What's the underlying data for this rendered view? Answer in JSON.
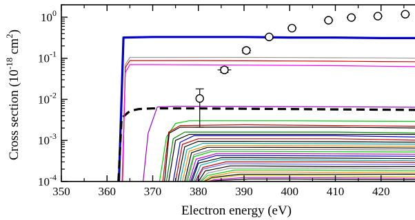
{
  "chart_data": {
    "type": "line",
    "title": "",
    "xlabel": "Electron energy (eV)",
    "ylabel_main": "Cross section (10",
    "ylabel_exp": "-18",
    "ylabel_unit": " cm",
    "ylabel_unit_exp": "2",
    "ylabel_close": ")",
    "xlim": [
      350,
      430
    ],
    "ylim": [
      0.0001,
      2
    ],
    "yscale": "log",
    "grid": false,
    "legend": "none",
    "x_ticks": [
      350,
      360,
      370,
      380,
      390,
      400,
      410,
      420
    ],
    "x_tick_labels": [
      "350",
      "360",
      "370",
      "380",
      "390",
      "400",
      "410",
      "420"
    ],
    "y_ticks": [
      0.0001,
      0.001,
      0.01,
      0.1,
      1
    ],
    "y_tick_base": [
      "10",
      "10",
      "10",
      "10",
      "10"
    ],
    "y_tick_exp": [
      "-4",
      "-3",
      "-2",
      "-1",
      "0"
    ],
    "experiment": {
      "x": [
        380.3,
        385.7,
        390.5,
        395.5,
        400.5,
        408.5,
        413.5,
        419.3,
        425.3
      ],
      "y": [
        0.0105,
        0.052,
        0.155,
        0.33,
        0.54,
        0.84,
        0.98,
        1.06,
        1.18
      ],
      "y_low": [
        0.0021,
        0.045,
        0.135,
        0.3,
        0.5,
        0.78,
        0.92,
        1.0,
        1.1
      ],
      "y_high": [
        0.018,
        0.06,
        0.175,
        0.36,
        0.58,
        0.9,
        1.04,
        1.14,
        1.28
      ],
      "x_err": [
        0,
        1.5,
        1.0,
        1.0,
        1.0,
        1.0,
        1.0,
        1.0,
        1.0
      ]
    },
    "series": [
      {
        "color": "#0000cc",
        "width": 3.2,
        "dash": "",
        "x": [
          362.6,
          363.6,
          370,
          380,
          390,
          400,
          410,
          420,
          430
        ],
        "y": [
          0.0001,
          0.32,
          0.33,
          0.33,
          0.33,
          0.32,
          0.32,
          0.31,
          0.31
        ]
      },
      {
        "color": "#000000",
        "width": 3.2,
        "dash": "12,7",
        "x": [
          362.5,
          363.2,
          365,
          367,
          370,
          380,
          390,
          400,
          410,
          420,
          430
        ],
        "y": [
          0.0001,
          0.0035,
          0.0052,
          0.0058,
          0.006,
          0.006,
          0.0059,
          0.0058,
          0.0057,
          0.0056,
          0.0055
        ]
      },
      {
        "color": "#999999",
        "width": 1.2,
        "dash": "",
        "x": [
          363.4,
          364,
          365,
          370,
          380,
          390,
          400,
          410,
          420,
          430
        ],
        "y": [
          0.0001,
          0.07,
          0.105,
          0.105,
          0.105,
          0.105,
          0.104,
          0.103,
          0.102,
          0.1
        ]
      },
      {
        "color": "#dd0000",
        "width": 1.2,
        "dash": "",
        "x": [
          363.4,
          364,
          365,
          370,
          380,
          390,
          400,
          410,
          420,
          430
        ],
        "y": [
          0.0001,
          0.06,
          0.088,
          0.088,
          0.088,
          0.087,
          0.086,
          0.085,
          0.083,
          0.082
        ]
      },
      {
        "color": "#ff00ff",
        "width": 1.2,
        "dash": "",
        "x": [
          363.3,
          364,
          365,
          370,
          380,
          390,
          400,
          410,
          420,
          430
        ],
        "y": [
          0.0001,
          0.045,
          0.07,
          0.07,
          0.069,
          0.068,
          0.067,
          0.066,
          0.064,
          0.062
        ]
      },
      {
        "color": "#9900cc",
        "width": 1.2,
        "dash": "",
        "x": [
          367.9,
          369,
          371,
          375,
          390,
          410,
          430
        ],
        "y": [
          0.0001,
          0.0015,
          0.0065,
          0.0068,
          0.0067,
          0.0066,
          0.0064
        ]
      },
      {
        "color": "#00cc00",
        "width": 1.2,
        "dash": "",
        "x": [
          371.5,
          373,
          375,
          378,
          400,
          430
        ],
        "y": [
          0.0001,
          0.0012,
          0.0026,
          0.003,
          0.003,
          0.0029
        ]
      },
      {
        "color": "#cc0000",
        "width": 1.2,
        "dash": "",
        "x": [
          372.2,
          373.5,
          376,
          390,
          410,
          430
        ],
        "y": [
          0.0001,
          0.0016,
          0.0023,
          0.0024,
          0.0023,
          0.0022
        ]
      },
      {
        "color": "#000000",
        "width": 1.2,
        "dash": "",
        "x": [
          372.6,
          373.6,
          376,
          390,
          410,
          430
        ],
        "y": [
          0.0001,
          0.0015,
          0.0021,
          0.0021,
          0.0021,
          0.002
        ]
      },
      {
        "color": "#008800",
        "width": 1.2,
        "dash": "",
        "x": [
          373,
          374.5,
          377,
          390,
          410,
          430
        ],
        "y": [
          0.0001,
          0.0011,
          0.0016,
          0.0016,
          0.0016,
          0.0015
        ]
      },
      {
        "color": "#000000",
        "width": 1.2,
        "dash": "",
        "x": [
          373.5,
          375,
          378,
          390,
          410,
          430
        ],
        "y": [
          0.0001,
          0.001,
          0.0014,
          0.0014,
          0.0014,
          0.0014
        ]
      },
      {
        "color": "#0000cc",
        "width": 1.2,
        "dash": "",
        "x": [
          374.5,
          376,
          379,
          390,
          410,
          430
        ],
        "y": [
          0.0001,
          0.0009,
          0.0013,
          0.0013,
          0.0013,
          0.0012
        ]
      },
      {
        "color": "#cc0000",
        "width": 1.2,
        "dash": "",
        "x": [
          375,
          376.5,
          380,
          390,
          410,
          430
        ],
        "y": [
          0.0001,
          0.0008,
          0.0011,
          0.0011,
          0.0011,
          0.001
        ]
      },
      {
        "color": "#000000",
        "width": 1.2,
        "dash": "",
        "x": [
          375.5,
          377,
          380,
          390,
          410,
          430
        ],
        "y": [
          0.0001,
          0.0007,
          0.00095,
          0.00095,
          0.00093,
          0.0009
        ]
      },
      {
        "color": "#00aaaa",
        "width": 1.2,
        "dash": "",
        "x": [
          376,
          377.5,
          381,
          390,
          410,
          430
        ],
        "y": [
          0.0001,
          0.0006,
          0.00085,
          0.00085,
          0.00083,
          0.0008
        ]
      },
      {
        "color": "#ff8800",
        "width": 1.2,
        "dash": "",
        "x": [
          376.5,
          378,
          382,
          390,
          410,
          430
        ],
        "y": [
          0.0001,
          0.00055,
          0.00075,
          0.00075,
          0.00074,
          0.00072
        ]
      },
      {
        "color": "#000000",
        "width": 1.2,
        "dash": "",
        "x": [
          377,
          378.5,
          382,
          390,
          410,
          430
        ],
        "y": [
          0.0001,
          0.0005,
          0.00068,
          0.00068,
          0.00067,
          0.00065
        ]
      },
      {
        "color": "#888888",
        "width": 1.2,
        "dash": "",
        "x": [
          377.3,
          379,
          383,
          390,
          410,
          430
        ],
        "y": [
          0.0001,
          0.00045,
          0.0006,
          0.0006,
          0.0006,
          0.00058
        ]
      },
      {
        "color": "#00cc00",
        "width": 1.2,
        "dash": "",
        "x": [
          377.6,
          379,
          383,
          390,
          410,
          430
        ],
        "y": [
          0.0001,
          0.0004,
          0.00054,
          0.00054,
          0.00053,
          0.00052
        ]
      },
      {
        "color": "#cc00cc",
        "width": 1.2,
        "dash": "",
        "x": [
          378,
          379.5,
          384,
          390,
          410,
          430
        ],
        "y": [
          0.0001,
          0.00035,
          0.00048,
          0.00048,
          0.00047,
          0.00046
        ]
      },
      {
        "color": "#0000cc",
        "width": 1.2,
        "dash": "",
        "x": [
          378.3,
          380,
          384,
          390,
          410,
          430
        ],
        "y": [
          0.0001,
          0.00032,
          0.00043,
          0.00043,
          0.00042,
          0.00041
        ]
      },
      {
        "color": "#000000",
        "width": 1.2,
        "dash": "",
        "x": [
          378.6,
          380,
          385,
          390,
          410,
          430
        ],
        "y": [
          0.0001,
          0.00028,
          0.00038,
          0.00038,
          0.00037,
          0.00036
        ]
      },
      {
        "color": "#00aaaa",
        "width": 1.2,
        "dash": "",
        "x": [
          379,
          380.5,
          385,
          390,
          410,
          430
        ],
        "y": [
          0.0001,
          0.00025,
          0.00034,
          0.00034,
          0.00033,
          0.00032
        ]
      },
      {
        "color": "#cc0000",
        "width": 1.2,
        "dash": "",
        "x": [
          379.3,
          381,
          386,
          390,
          410,
          430
        ],
        "y": [
          0.0001,
          0.00022,
          0.0003,
          0.0003,
          0.0003,
          0.00029
        ]
      },
      {
        "color": "#6666ff",
        "width": 1.2,
        "dash": "",
        "x": [
          379.6,
          381,
          386,
          390,
          410,
          430
        ],
        "y": [
          0.0001,
          0.0002,
          0.00027,
          0.00027,
          0.00026,
          0.00026
        ]
      },
      {
        "color": "#000000",
        "width": 1.2,
        "dash": "",
        "x": [
          380,
          381.5,
          387,
          390,
          410,
          430
        ],
        "y": [
          0.0001,
          0.00018,
          0.00024,
          0.00024,
          0.00023,
          0.00023
        ]
      },
      {
        "color": "#999999",
        "width": 1.2,
        "dash": "",
        "x": [
          380.3,
          382,
          387,
          390,
          410,
          430
        ],
        "y": [
          0.0001,
          0.00016,
          0.00021,
          0.00021,
          0.00021,
          0.0002
        ]
      },
      {
        "color": "#00cc00",
        "width": 1.2,
        "dash": "",
        "x": [
          380.6,
          382,
          388,
          400,
          430
        ],
        "y": [
          0.0001,
          0.00014,
          0.00019,
          0.00019,
          0.00018
        ]
      },
      {
        "color": "#ff8800",
        "width": 1.2,
        "dash": "",
        "x": [
          381,
          382.5,
          388,
          400,
          430
        ],
        "y": [
          0.0001,
          0.00013,
          0.00017,
          0.00017,
          0.00016
        ]
      },
      {
        "color": "#000000",
        "width": 1.2,
        "dash": "",
        "x": [
          381.3,
          383,
          389,
          400,
          430
        ],
        "y": [
          0.0001,
          0.000125,
          0.00015,
          0.00015,
          0.00015
        ]
      },
      {
        "color": "#cccc00",
        "width": 1.2,
        "dash": "",
        "x": [
          381.6,
          383,
          389,
          400,
          430
        ],
        "y": [
          0.0001,
          0.00012,
          0.00014,
          0.00014,
          0.00013
        ]
      },
      {
        "color": "#cc00cc",
        "width": 1.2,
        "dash": "",
        "x": [
          382,
          383.5,
          390,
          400,
          430
        ],
        "y": [
          0.0001,
          0.00011,
          0.000125,
          0.000125,
          0.00012
        ]
      },
      {
        "color": "#000000",
        "width": 1.2,
        "dash": "",
        "x": [
          382.3,
          384,
          391,
          400,
          430
        ],
        "y": [
          0.0001,
          0.000105,
          0.000115,
          0.000115,
          0.00011
        ]
      }
    ]
  }
}
